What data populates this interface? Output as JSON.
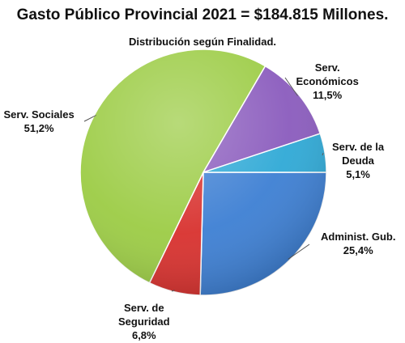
{
  "chart_data": {
    "type": "pie",
    "title": "Gasto Público Provincial 2021 =  $184.815 Millones.",
    "subtitle": "Distribución según Finalidad.",
    "slices": [
      {
        "name_lines": [
          "Administ. Gub."
        ],
        "value_label": "25,4%",
        "value": 25.4,
        "color": "#3d7fd3"
      },
      {
        "name_lines": [
          "Serv. de",
          "Seguridad"
        ],
        "value_label": "6,8%",
        "value": 6.8,
        "color": "#d8312e"
      },
      {
        "name_lines": [
          "Serv. Sociales"
        ],
        "value_label": "51,2%",
        "value": 51.2,
        "color": "#9ccc45"
      },
      {
        "name_lines": [
          "Serv.",
          "Económicos"
        ],
        "value_label": "11,5%",
        "value": 11.5,
        "color": "#8a5bbd"
      },
      {
        "name_lines": [
          "Serv. de la",
          "Deuda"
        ],
        "value_label": "5,1%",
        "value": 5.1,
        "color": "#2fa9d6"
      }
    ]
  }
}
